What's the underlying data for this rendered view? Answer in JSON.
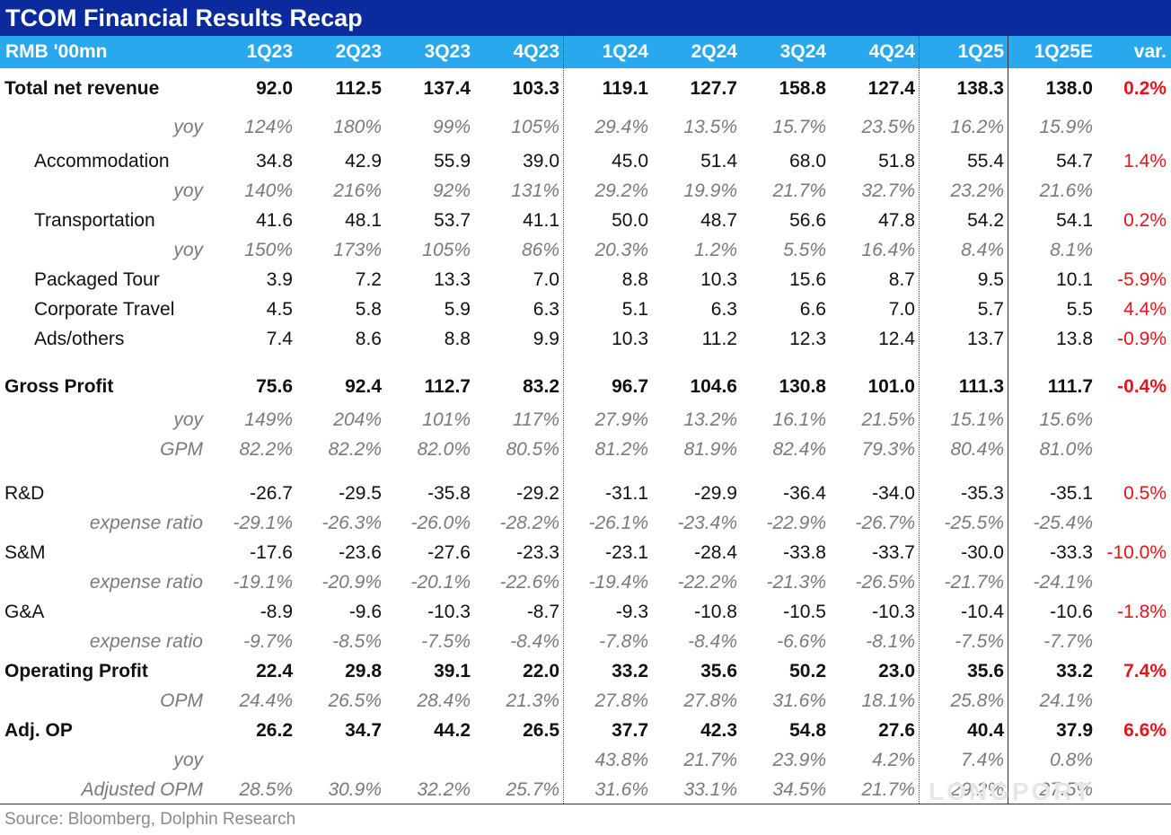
{
  "title": "TCOM Financial Results Recap",
  "header": {
    "unit": "RMB '00mn",
    "columns": [
      "1Q23",
      "2Q23",
      "3Q23",
      "4Q23",
      "1Q24",
      "2Q24",
      "3Q24",
      "4Q24",
      "1Q25",
      "1Q25E",
      "var."
    ]
  },
  "rows": [
    {
      "label": "Total net revenue",
      "values": [
        "92.0",
        "112.5",
        "137.4",
        "103.3",
        "119.1",
        "127.7",
        "158.8",
        "127.4",
        "138.3",
        "138.0"
      ],
      "var": "0.2%"
    },
    {
      "label": "yoy",
      "values": [
        "124%",
        "180%",
        "99%",
        "105%",
        "29.4%",
        "13.5%",
        "15.7%",
        "23.5%",
        "16.2%",
        "15.9%"
      ],
      "var": ""
    },
    {
      "label": "Accommodation",
      "values": [
        "34.8",
        "42.9",
        "55.9",
        "39.0",
        "45.0",
        "51.4",
        "68.0",
        "51.8",
        "55.4",
        "54.7"
      ],
      "var": "1.4%"
    },
    {
      "label": "yoy",
      "values": [
        "140%",
        "216%",
        "92%",
        "131%",
        "29.2%",
        "19.9%",
        "21.7%",
        "32.7%",
        "23.2%",
        "21.6%"
      ],
      "var": ""
    },
    {
      "label": "Transportation",
      "values": [
        "41.6",
        "48.1",
        "53.7",
        "41.1",
        "50.0",
        "48.7",
        "56.6",
        "47.8",
        "54.2",
        "54.1"
      ],
      "var": "0.2%"
    },
    {
      "label": "yoy",
      "values": [
        "150%",
        "173%",
        "105%",
        "86%",
        "20.3%",
        "1.2%",
        "5.5%",
        "16.4%",
        "8.4%",
        "8.1%"
      ],
      "var": ""
    },
    {
      "label": "Packaged Tour",
      "values": [
        "3.9",
        "7.2",
        "13.3",
        "7.0",
        "8.8",
        "10.3",
        "15.6",
        "8.7",
        "9.5",
        "10.1"
      ],
      "var": "-5.9%"
    },
    {
      "label": "Corporate Travel",
      "values": [
        "4.5",
        "5.8",
        "5.9",
        "6.3",
        "5.1",
        "6.3",
        "6.6",
        "7.0",
        "5.7",
        "5.5"
      ],
      "var": "4.4%"
    },
    {
      "label": "Ads/others",
      "values": [
        "7.4",
        "8.6",
        "8.8",
        "9.9",
        "10.3",
        "11.2",
        "12.3",
        "12.4",
        "13.7",
        "13.8"
      ],
      "var": "-0.9%"
    },
    {
      "label": "Gross Profit",
      "values": [
        "75.6",
        "92.4",
        "112.7",
        "83.2",
        "96.7",
        "104.6",
        "130.8",
        "101.0",
        "111.3",
        "111.7"
      ],
      "var": "-0.4%"
    },
    {
      "label": "yoy",
      "values": [
        "149%",
        "204%",
        "101%",
        "117%",
        "27.9%",
        "13.2%",
        "16.1%",
        "21.5%",
        "15.1%",
        "15.6%"
      ],
      "var": ""
    },
    {
      "label": "GPM",
      "values": [
        "82.2%",
        "82.2%",
        "82.0%",
        "80.5%",
        "81.2%",
        "81.9%",
        "82.4%",
        "79.3%",
        "80.4%",
        "81.0%"
      ],
      "var": ""
    },
    {
      "label": "R&D",
      "values": [
        "-26.7",
        "-29.5",
        "-35.8",
        "-29.2",
        "-31.1",
        "-29.9",
        "-36.4",
        "-34.0",
        "-35.3",
        "-35.1"
      ],
      "var": "0.5%"
    },
    {
      "label": "expense ratio",
      "values": [
        "-29.1%",
        "-26.3%",
        "-26.0%",
        "-28.2%",
        "-26.1%",
        "-23.4%",
        "-22.9%",
        "-26.7%",
        "-25.5%",
        "-25.4%"
      ],
      "var": ""
    },
    {
      "label": "S&M",
      "values": [
        "-17.6",
        "-23.6",
        "-27.6",
        "-23.3",
        "-23.1",
        "-28.4",
        "-33.8",
        "-33.7",
        "-30.0",
        "-33.3"
      ],
      "var": "-10.0%"
    },
    {
      "label": "expense ratio",
      "values": [
        "-19.1%",
        "-20.9%",
        "-20.1%",
        "-22.6%",
        "-19.4%",
        "-22.2%",
        "-21.3%",
        "-26.5%",
        "-21.7%",
        "-24.1%"
      ],
      "var": ""
    },
    {
      "label": "G&A",
      "values": [
        "-8.9",
        "-9.6",
        "-10.3",
        "-8.7",
        "-9.3",
        "-10.8",
        "-10.5",
        "-10.3",
        "-10.4",
        "-10.6"
      ],
      "var": "-1.8%"
    },
    {
      "label": "expense ratio",
      "values": [
        "-9.7%",
        "-8.5%",
        "-7.5%",
        "-8.4%",
        "-7.8%",
        "-8.4%",
        "-6.6%",
        "-8.1%",
        "-7.5%",
        "-7.7%"
      ],
      "var": ""
    },
    {
      "label": "Operating Profit",
      "values": [
        "22.4",
        "29.8",
        "39.1",
        "22.0",
        "33.2",
        "35.6",
        "50.2",
        "23.0",
        "35.6",
        "33.2"
      ],
      "var": "7.4%"
    },
    {
      "label": "OPM",
      "values": [
        "24.4%",
        "26.5%",
        "28.4%",
        "21.3%",
        "27.8%",
        "27.8%",
        "31.6%",
        "18.1%",
        "25.8%",
        "24.1%"
      ],
      "var": ""
    },
    {
      "label": "Adj. OP",
      "values": [
        "26.2",
        "34.7",
        "44.2",
        "26.5",
        "37.7",
        "42.3",
        "54.8",
        "27.6",
        "40.4",
        "37.9"
      ],
      "var": "6.6%"
    },
    {
      "label": "yoy",
      "values": [
        "",
        "",
        "",
        "",
        "43.8%",
        "21.7%",
        "23.9%",
        "4.2%",
        "7.4%",
        "0.8%"
      ],
      "var": ""
    },
    {
      "label": "Adjusted OPM",
      "values": [
        "28.5%",
        "30.9%",
        "32.2%",
        "25.7%",
        "31.6%",
        "33.1%",
        "34.5%",
        "21.7%",
        "29.2%",
        "27.5%"
      ],
      "var": ""
    }
  ],
  "source": "Source:  Bloomberg, Dolphin Research",
  "watermark": "LONGPORT",
  "colors": {
    "title_bg": "#0b2a9e",
    "header_bg": "#2aa8ee",
    "var_red": "#e8141b",
    "sub_gray": "#7a7a7a"
  }
}
